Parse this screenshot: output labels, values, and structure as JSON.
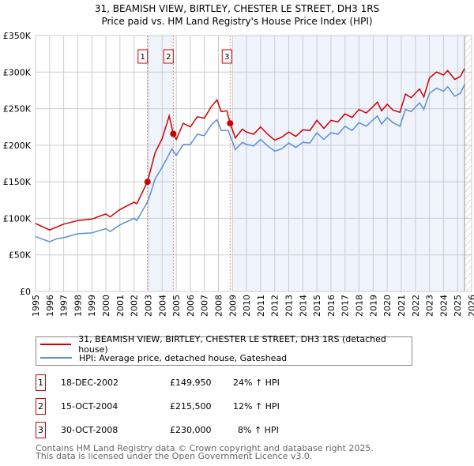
{
  "chart_data": {
    "type": "line",
    "title": "31, BEAMISH VIEW, BIRTLEY, CHESTER LE STREET, DH3 1RS",
    "subtitle": "Price paid vs. HM Land Registry's House Price Index (HPI)",
    "xlim": [
      1995,
      2026
    ],
    "ylim": [
      0,
      350000
    ],
    "yticks": [
      0,
      50000,
      100000,
      150000,
      200000,
      250000,
      300000,
      350000
    ],
    "ytick_labels": [
      "£0",
      "£50K",
      "£100K",
      "£150K",
      "£200K",
      "£250K",
      "£300K",
      "£350K"
    ],
    "xticks": [
      "1995",
      "1996",
      "1997",
      "1998",
      "1999",
      "2000",
      "2001",
      "2002",
      "2003",
      "2004",
      "2005",
      "2006",
      "2007",
      "2008",
      "2009",
      "2010",
      "2011",
      "2012",
      "2013",
      "2014",
      "2015",
      "2016",
      "2017",
      "2018",
      "2019",
      "2020",
      "2021",
      "2022",
      "2023",
      "2024",
      "2025",
      "2026"
    ],
    "grid": true,
    "series": [
      {
        "name": "31, BEAMISH VIEW, BIRTLEY, CHESTER LE STREET, DH3 1RS (detached house)",
        "color": "#cc0000",
        "x": [
          1995,
          1996,
          1997,
          1998,
          1999,
          2000,
          2000.3,
          2001,
          2002,
          2002.2,
          2002.96,
          2003.5,
          2004,
          2004.5,
          2004.79,
          2005,
          2005.5,
          2006,
          2006.5,
          2007,
          2007.5,
          2007.9,
          2008.2,
          2008.6,
          2008.83,
          2009.2,
          2009.7,
          2010,
          2010.5,
          2011,
          2011.5,
          2012,
          2012.5,
          2013,
          2013.5,
          2014,
          2014.5,
          2015,
          2015.5,
          2016,
          2016.5,
          2017,
          2017.5,
          2018,
          2018.5,
          2019,
          2019.3,
          2019.6,
          2020,
          2020.4,
          2020.9,
          2021.3,
          2021.7,
          2022.3,
          2022.6,
          2023,
          2023.5,
          2024,
          2024.3,
          2024.8,
          2025.2,
          2025.5
        ],
        "y": [
          93,
          84,
          92,
          97,
          99,
          106,
          102,
          112,
          122,
          120,
          149.95,
          190,
          209,
          240,
          215.5,
          208,
          230,
          225,
          239,
          237,
          253,
          262,
          246,
          247,
          230,
          210,
          222,
          218,
          215,
          225,
          215,
          207,
          211,
          218,
          212,
          221,
          220,
          234,
          223,
          234,
          232,
          243,
          238,
          249,
          244,
          253,
          259,
          247,
          256,
          248,
          245,
          270,
          265,
          277,
          266,
          292,
          300,
          296,
          302,
          290,
          294,
          305
        ]
      },
      {
        "name": "HPI: Average price, detached house, Gateshead",
        "color": "#5b8fd0",
        "x": [
          1995,
          1996,
          1996.5,
          1997,
          1998,
          1999,
          2000,
          2000.3,
          2001,
          2002,
          2002.2,
          2003,
          2003.5,
          2004,
          2004.7,
          2005,
          2005.5,
          2006,
          2006.5,
          2007,
          2007.5,
          2007.9,
          2008.2,
          2008.7,
          2009.2,
          2009.7,
          2010,
          2010.5,
          2011,
          2011.5,
          2012,
          2012.5,
          2013,
          2013.5,
          2014,
          2014.5,
          2015,
          2015.5,
          2016,
          2016.5,
          2017,
          2017.5,
          2018,
          2018.5,
          2019,
          2019.3,
          2019.6,
          2020,
          2020.4,
          2020.9,
          2021.3,
          2021.7,
          2022.3,
          2022.6,
          2023,
          2023.5,
          2024,
          2024.3,
          2024.8,
          2025.2,
          2025.5
        ],
        "y": [
          75,
          68,
          72,
          73.5,
          79,
          80,
          86,
          82,
          91,
          100,
          97,
          124,
          154,
          170,
          195,
          186,
          201,
          201,
          215,
          213,
          228,
          235,
          220,
          220,
          194,
          204,
          201,
          199,
          208,
          199,
          192,
          195,
          203,
          197,
          204,
          203,
          217,
          208,
          217,
          215,
          226,
          220,
          231,
          226,
          235,
          240,
          229,
          238,
          231,
          226,
          249,
          246,
          258,
          249,
          271,
          278,
          274,
          280,
          267,
          271,
          283
        ]
      }
    ],
    "unit_multiplier": 1000,
    "sales": [
      {
        "label": "1",
        "x": 2002.96,
        "y": 149950
      },
      {
        "label": "2",
        "x": 2004.79,
        "y": 215500
      },
      {
        "label": "3",
        "x": 2008.83,
        "y": 230000
      }
    ],
    "shaded_ranges": [
      [
        2002.96,
        2004.79
      ],
      [
        2009.0,
        2025.5
      ]
    ],
    "forecast_from": 2025.5,
    "legend": "bottom"
  },
  "table": [
    {
      "num": "1",
      "date": "18-DEC-2002",
      "price": "£149,950",
      "hpi": "24% ↑ HPI"
    },
    {
      "num": "2",
      "date": "15-OCT-2004",
      "price": "£215,500",
      "hpi": "12% ↑ HPI"
    },
    {
      "num": "3",
      "date": "30-OCT-2008",
      "price": "£230,000",
      "hpi": "8% ↑ HPI"
    }
  ],
  "footer": [
    "Contains HM Land Registry data © Crown copyright and database right 2025.",
    "This data is licensed under the Open Government Licence v3.0."
  ]
}
